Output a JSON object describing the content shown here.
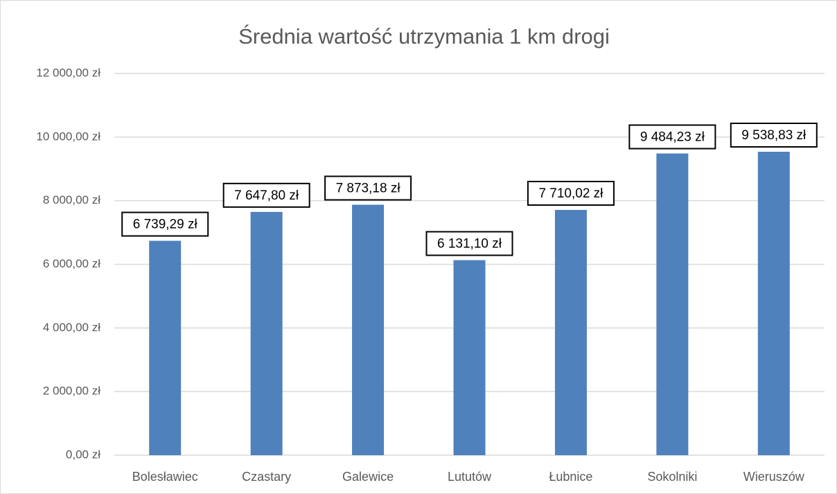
{
  "chart_data": {
    "type": "bar",
    "title": "Średnia wartość utrzymania 1 km drogi",
    "categories": [
      "Bolesławiec",
      "Czastary",
      "Galewice",
      "Lututów",
      "Łubnice",
      "Sokolniki",
      "Wieruszów"
    ],
    "values": [
      6739.29,
      7647.8,
      7873.18,
      6131.1,
      7710.02,
      9484.23,
      9538.83
    ],
    "value_labels": [
      "6 739,29 zł",
      "7 647,80 zł",
      "7 873,18 zł",
      "6 131,10 zł",
      "7 710,02 zł",
      "9 484,23 zł",
      "9 538,83 zł"
    ],
    "color": "#4f81bd",
    "ylim": [
      0,
      12000
    ],
    "yticks": [
      {
        "value": 0,
        "label": "0,00 zł"
      },
      {
        "value": 2000,
        "label": "2 000,00 zł"
      },
      {
        "value": 4000,
        "label": "4 000,00 zł"
      },
      {
        "value": 6000,
        "label": "6 000,00 zł"
      },
      {
        "value": 8000,
        "label": "8 000,00 zł"
      },
      {
        "value": 10000,
        "label": "10 000,00 zł"
      },
      {
        "value": 12000,
        "label": "12 000,00 zł"
      }
    ],
    "grid": true
  }
}
